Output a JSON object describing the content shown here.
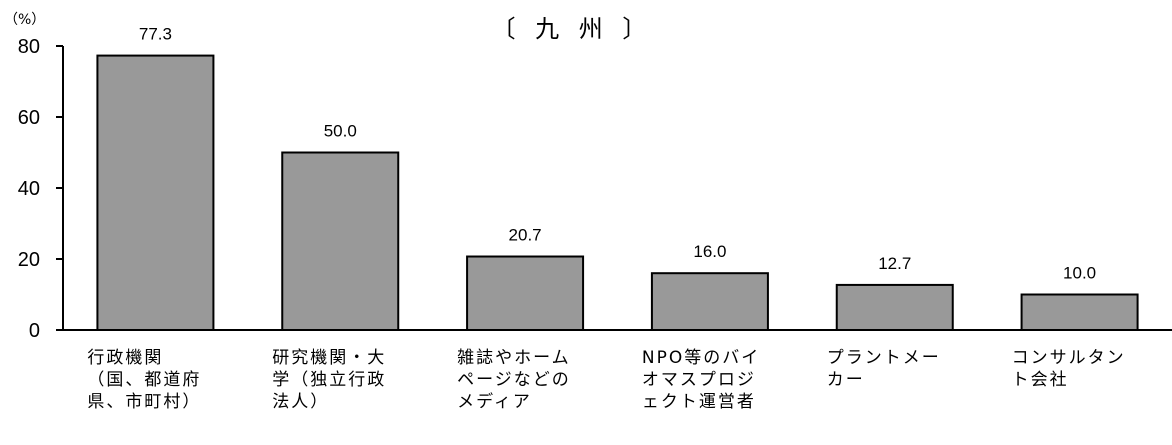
{
  "chart_data": {
    "type": "bar",
    "title": "〔 九 州 〕",
    "unit": "（%）",
    "categories": [
      "行政機関（国、都道府県、市町村）",
      "研究機関・大学（独立行政法人）",
      "雑誌やホームページなどのメディア",
      "NPO等のバイオマスプロジェクト運営者",
      "プラントメーカー",
      "コンサルタント会社"
    ],
    "values": [
      77.3,
      50.0,
      20.7,
      16.0,
      12.7,
      10.0
    ],
    "value_labels": [
      "77.3",
      "50.0",
      "20.7",
      "16.0",
      "12.7",
      "10.0"
    ],
    "ylim": [
      0,
      80
    ],
    "yticks": [
      0,
      20,
      40,
      60,
      80
    ],
    "bar_color": "#999999",
    "grid": false,
    "legend": "none"
  }
}
